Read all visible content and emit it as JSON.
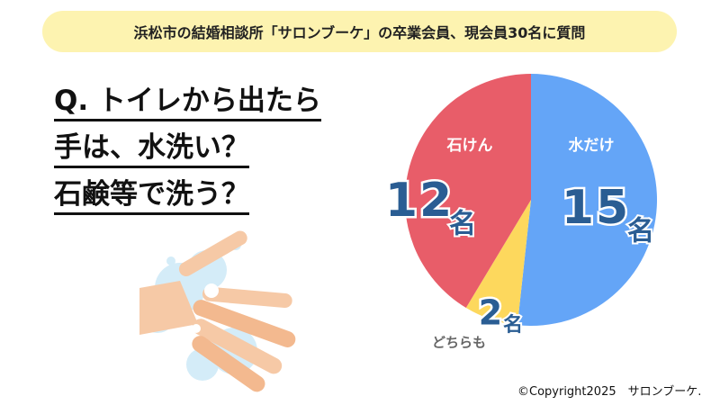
{
  "header": "浜松市の結婚相談所「サロンブーケ」の卒業会員、現会員30名に質問",
  "question": [
    "Q. トイレから出たら",
    "手は、水洗い？",
    "石鹸等で洗う？"
  ],
  "chart_data": {
    "type": "pie",
    "categories": [
      "水だけ",
      "どちらも",
      "石けん"
    ],
    "values": [
      15,
      2,
      12
    ],
    "unit": "名",
    "colors": [
      "#64a5f7",
      "#fdd85d",
      "#e85d69"
    ]
  },
  "footer": "©Copyright2025　サロンブーケ."
}
